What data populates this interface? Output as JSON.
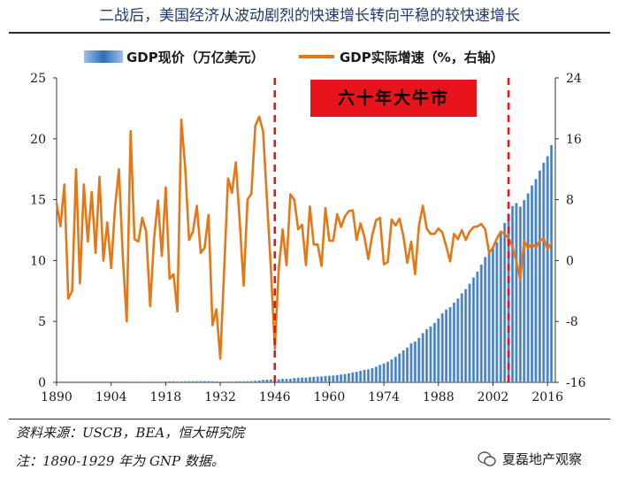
{
  "title": "二战后，美国经济从波动剧烈的快速增长转向平稳的较快速增长",
  "banner": "六十年大牛市",
  "source": "资料来源：USCB，BEA，恒大研究院",
  "note": "注：1890-1929 年为 GNP 数据。",
  "watermark": "夏磊地产观察",
  "colors": {
    "bars": "#2f6fb6",
    "line": "#e57716",
    "divider": "#e8141b"
  },
  "chart_data": {
    "type": "bar+line",
    "legend": [
      {
        "name": "GDP现价（万亿美元）",
        "kind": "bar"
      },
      {
        "name": "GDP实际增速（%，右轴）",
        "kind": "line"
      }
    ],
    "x_range": [
      1890,
      2018
    ],
    "x_ticks": [
      "1890",
      "1904",
      "1918",
      "1932",
      "1946",
      "1960",
      "1974",
      "1988",
      "2002",
      "2016"
    ],
    "y_left": {
      "range": [
        0,
        25
      ],
      "ticks": [
        "0",
        "5",
        "10",
        "15",
        "20",
        "25"
      ]
    },
    "y_right": {
      "range": [
        -16,
        24
      ],
      "ticks": [
        "-16",
        "-8",
        "0",
        "8",
        "16",
        "24"
      ]
    },
    "vertical_markers": [
      1946,
      2006
    ],
    "bar_series": {
      "name": "GDP现价（万亿美元）",
      "years": [
        1909,
        1910,
        1911,
        1912,
        1913,
        1914,
        1915,
        1916,
        1917,
        1918,
        1919,
        1920,
        1921,
        1922,
        1923,
        1924,
        1925,
        1926,
        1927,
        1928,
        1929,
        1930,
        1931,
        1932,
        1933,
        1934,
        1935,
        1936,
        1937,
        1938,
        1939,
        1940,
        1941,
        1942,
        1943,
        1944,
        1945,
        1946,
        1947,
        1948,
        1949,
        1950,
        1951,
        1952,
        1953,
        1954,
        1955,
        1956,
        1957,
        1958,
        1959,
        1960,
        1961,
        1962,
        1963,
        1964,
        1965,
        1966,
        1967,
        1968,
        1969,
        1970,
        1971,
        1972,
        1973,
        1974,
        1975,
        1976,
        1977,
        1978,
        1979,
        1980,
        1981,
        1982,
        1983,
        1984,
        1985,
        1986,
        1987,
        1988,
        1989,
        1990,
        1991,
        1992,
        1993,
        1994,
        1995,
        1996,
        1997,
        1998,
        1999,
        2000,
        2001,
        2002,
        2003,
        2004,
        2005,
        2006,
        2007,
        2008,
        2009,
        2010,
        2011,
        2012,
        2013,
        2014,
        2015,
        2016,
        2017
      ],
      "values": [
        0.03,
        0.03,
        0.03,
        0.04,
        0.04,
        0.04,
        0.04,
        0.05,
        0.06,
        0.07,
        0.08,
        0.09,
        0.07,
        0.07,
        0.09,
        0.09,
        0.09,
        0.1,
        0.1,
        0.1,
        0.1,
        0.09,
        0.08,
        0.06,
        0.06,
        0.07,
        0.07,
        0.08,
        0.09,
        0.09,
        0.09,
        0.1,
        0.13,
        0.16,
        0.2,
        0.22,
        0.23,
        0.24,
        0.25,
        0.28,
        0.28,
        0.3,
        0.35,
        0.37,
        0.39,
        0.39,
        0.43,
        0.45,
        0.47,
        0.48,
        0.52,
        0.54,
        0.56,
        0.6,
        0.64,
        0.69,
        0.74,
        0.82,
        0.86,
        0.94,
        1.02,
        1.07,
        1.16,
        1.28,
        1.43,
        1.55,
        1.69,
        1.88,
        2.09,
        2.36,
        2.63,
        2.86,
        3.21,
        3.34,
        3.64,
        4.04,
        4.35,
        4.59,
        4.87,
        5.25,
        5.66,
        5.98,
        6.17,
        6.54,
        6.88,
        7.31,
        7.66,
        8.1,
        8.61,
        9.09,
        9.66,
        10.29,
        10.62,
        10.98,
        11.51,
        12.27,
        13.09,
        13.86,
        14.48,
        14.72,
        14.42,
        14.96,
        15.52,
        16.16,
        16.69,
        17.39,
        18.04,
        18.57,
        19.49
      ]
    },
    "line_series": {
      "name": "GDP实际增速（%，右轴）",
      "years": [
        1890,
        1891,
        1892,
        1893,
        1894,
        1895,
        1896,
        1897,
        1898,
        1899,
        1900,
        1901,
        1902,
        1903,
        1904,
        1905,
        1906,
        1907,
        1908,
        1909,
        1910,
        1911,
        1912,
        1913,
        1914,
        1915,
        1916,
        1917,
        1918,
        1919,
        1920,
        1921,
        1922,
        1923,
        1924,
        1925,
        1926,
        1927,
        1928,
        1929,
        1930,
        1931,
        1932,
        1933,
        1934,
        1935,
        1936,
        1937,
        1938,
        1939,
        1940,
        1941,
        1942,
        1943,
        1944,
        1945,
        1946,
        1947,
        1948,
        1949,
        1950,
        1951,
        1952,
        1953,
        1954,
        1955,
        1956,
        1957,
        1958,
        1959,
        1960,
        1961,
        1962,
        1963,
        1964,
        1965,
        1966,
        1967,
        1968,
        1969,
        1970,
        1971,
        1972,
        1973,
        1974,
        1975,
        1976,
        1977,
        1978,
        1979,
        1980,
        1981,
        1982,
        1983,
        1984,
        1985,
        1986,
        1987,
        1988,
        1989,
        1990,
        1991,
        1992,
        1993,
        1994,
        1995,
        1996,
        1997,
        1998,
        1999,
        2000,
        2001,
        2002,
        2003,
        2004,
        2005,
        2006,
        2007,
        2008,
        2009,
        2010,
        2011,
        2012,
        2013,
        2014,
        2015,
        2016,
        2017
      ],
      "values": [
        7.5,
        4.5,
        10,
        -5,
        -4,
        12,
        -3,
        10,
        2.5,
        9,
        1,
        11,
        0,
        5,
        -1,
        7,
        12,
        0.5,
        -8,
        17,
        2.8,
        2.5,
        5.6,
        3.8,
        -6,
        2.8,
        7.9,
        0.6,
        9.6,
        -2.4,
        -1.8,
        -6.7,
        18.5,
        12.3,
        2.7,
        3.8,
        7.2,
        1,
        1.7,
        6,
        -8.5,
        -6.4,
        -12.9,
        -1.2,
        10.8,
        8.9,
        12.9,
        5.1,
        -3.3,
        8,
        8.8,
        17.7,
        18.9,
        17,
        8,
        -1,
        -11.6,
        -1.1,
        4.1,
        -0.6,
        8.7,
        8,
        4.1,
        4.7,
        -0.6,
        7.1,
        2.1,
        2.1,
        -0.7,
        6.9,
        2.6,
        2.6,
        6.1,
        4.4,
        5.8,
        6.5,
        6.6,
        2.7,
        4.9,
        3.1,
        0.2,
        3.3,
        5.3,
        5.6,
        -0.5,
        -0.2,
        5.4,
        4.6,
        5.5,
        3.2,
        -0.3,
        2.5,
        -1.8,
        4.6,
        7.2,
        4.2,
        3.5,
        3.5,
        4.2,
        3.7,
        1.9,
        -0.1,
        3.5,
        2.8,
        4,
        2.7,
        3.8,
        4.4,
        4.5,
        4.8,
        4.1,
        1,
        1.7,
        2.9,
        3.8,
        3.5,
        2.9,
        1.9,
        -0.1,
        -2.5,
        2.6,
        1.6,
        2.2,
        1.7,
        2.6,
        2.9,
        1.5,
        2.3
      ]
    }
  }
}
